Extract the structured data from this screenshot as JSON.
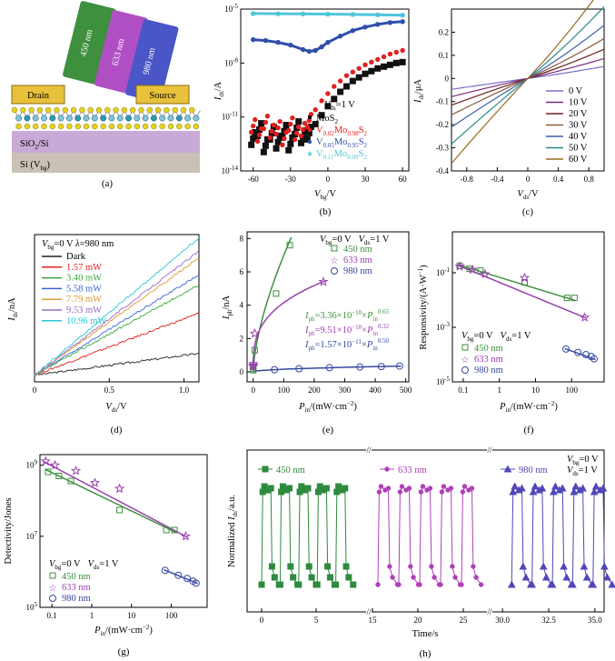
{
  "colors": {
    "green": "#3e8f3e",
    "purple": "#9a3fb0",
    "blue": "#3848a0",
    "red": "#e02020",
    "black": "#111111",
    "cyan": "#4ec6d9",
    "drain_fill": "#e8c23a",
    "sio2": "#c9a9d6",
    "si": "#c9c1b5"
  },
  "panel_labels": [
    "(a)",
    "(b)",
    "(c)",
    "(d)",
    "(e)",
    "(f)",
    "(g)",
    "(h)"
  ],
  "device": {
    "beams": [
      {
        "label": "450 nm",
        "color": "#3e8f3e"
      },
      {
        "label": "633 nm",
        "color": "#b04fc4"
      },
      {
        "label": "980 nm",
        "color": "#4a55c8"
      }
    ],
    "drain": "Drain",
    "source": "Source",
    "sio2": "SiO",
    "sio2_tail": "/Si",
    "si": "Si (V",
    "si_sub": "bg",
    "si_tail": ")"
  },
  "chart_data": [
    {
      "panel": "b",
      "type": "scatter",
      "xlabel": "Vbg/V",
      "ylabel": "Ids/A",
      "xlim": [
        -70,
        65
      ],
      "ylim_log10": [
        -14,
        -5
      ],
      "xticks": [
        -60,
        -30,
        0,
        30,
        60
      ],
      "ytick_labels": [
        {
          "base": "10",
          "exp": "-5"
        },
        {
          "base": "10",
          "exp": "-8"
        },
        {
          "base": "10",
          "exp": "-11"
        },
        {
          "base": "10",
          "exp": "-14"
        }
      ],
      "annotation": "Vds=1 V",
      "legend": [
        "MoS2",
        "V0.02Mo0.98S2",
        "V0.05Mo0.95S2",
        "V0.11Mo0.89S2"
      ],
      "series": [
        {
          "name": "MoS2",
          "color": "#111111",
          "marker": "square",
          "x": [
            -60,
            -55,
            -50,
            -45,
            -40,
            -35,
            -30,
            -25,
            -20,
            -15,
            -10,
            -5,
            0,
            5,
            10,
            15,
            20,
            25,
            30,
            35,
            40,
            45,
            50,
            55,
            60
          ],
          "log10_y": [
            -12.2,
            -11.7,
            -12.6,
            -11.9,
            -12.4,
            -11.8,
            -12.5,
            -11.6,
            -12.1,
            -11.9,
            -11.4,
            -10.9,
            -10.4,
            -10.0,
            -9.6,
            -9.3,
            -9.0,
            -8.8,
            -8.6,
            -8.45,
            -8.3,
            -8.2,
            -8.1,
            -8.0,
            -7.95
          ]
        },
        {
          "name": "V0.02Mo0.98S2",
          "color": "#e02020",
          "marker": "circle",
          "x": [
            -60,
            -55,
            -50,
            -45,
            -40,
            -35,
            -30,
            -25,
            -20,
            -15,
            -10,
            -5,
            0,
            5,
            10,
            15,
            20,
            25,
            30,
            35,
            40,
            45,
            50,
            55,
            60
          ],
          "log10_y": [
            -11.5,
            -12.0,
            -11.3,
            -11.8,
            -11.6,
            -12.2,
            -11.4,
            -11.9,
            -11.7,
            -11.2,
            -10.6,
            -10.1,
            -9.7,
            -9.3,
            -9.0,
            -8.7,
            -8.5,
            -8.3,
            -8.1,
            -7.95,
            -7.8,
            -7.65,
            -7.5,
            -7.4,
            -7.3
          ]
        },
        {
          "name": "V0.05Mo0.95S2",
          "color": "#2f4faa",
          "marker": "circle",
          "x": [
            -60,
            -50,
            -40,
            -30,
            -20,
            -15,
            -10,
            -5,
            0,
            10,
            20,
            30,
            40,
            50,
            60
          ],
          "log10_y": [
            -6.7,
            -6.75,
            -6.85,
            -7.0,
            -7.25,
            -7.35,
            -7.3,
            -7.1,
            -6.85,
            -6.5,
            -6.2,
            -6.0,
            -5.85,
            -5.75,
            -5.7
          ]
        },
        {
          "name": "V0.11Mo0.89S2",
          "color": "#4ec6d9",
          "marker": "circle",
          "x": [
            -60,
            -40,
            -20,
            0,
            20,
            40,
            60
          ],
          "log10_y": [
            -5.25,
            -5.26,
            -5.27,
            -5.28,
            -5.3,
            -5.32,
            -5.34
          ]
        }
      ]
    },
    {
      "panel": "c",
      "type": "line",
      "xlabel": "Vds/V",
      "ylabel": "Ids/μA",
      "xlim": [
        -1.0,
        1.0
      ],
      "ylim": [
        -0.4,
        0.3
      ],
      "xticks": [
        -0.8,
        -0.4,
        0,
        0.4,
        0.8
      ],
      "yticks": [
        -0.4,
        -0.3,
        -0.2,
        -0.1,
        0,
        0.1,
        0.2
      ],
      "legend_unit": "V",
      "series": [
        {
          "name": "0 V",
          "color": "#7b6fc8",
          "slope": 0.045
        },
        {
          "name": "10 V",
          "color": "#7a2a7a",
          "slope": 0.075
        },
        {
          "name": "20 V",
          "color": "#6b2020",
          "slope": 0.11
        },
        {
          "name": "30 V",
          "color": "#8a5a3a",
          "slope": 0.15
        },
        {
          "name": "40 V",
          "color": "#3a62a8",
          "slope": 0.2
        },
        {
          "name": "50 V",
          "color": "#2a8a8a",
          "slope": 0.27
        },
        {
          "name": "60 V",
          "color": "#9a6a20",
          "slope": 0.35
        }
      ],
      "negative_scale": 1.0
    },
    {
      "panel": "d",
      "type": "line",
      "xlabel": "Vds/V",
      "ylabel": "Ids/nA",
      "xlim": [
        0,
        1.1
      ],
      "ylim": [
        -0.02,
        0.42
      ],
      "xticks": [
        0.0,
        0.5,
        1.0
      ],
      "xtick_labels": [
        "0",
        "0.5",
        "1.0"
      ],
      "annotation": "Vbg=0 V  λ=980 nm",
      "series": [
        {
          "name": "Dark",
          "color": "#222222",
          "end": 0.065
        },
        {
          "name": "1.57 mW",
          "color": "#e02020",
          "end": 0.185
        },
        {
          "name": "3.40 mW",
          "color": "#3aaa3a",
          "end": 0.27
        },
        {
          "name": "5.58 mW",
          "color": "#3a62d8",
          "end": 0.3
        },
        {
          "name": "7.79 mW",
          "color": "#e09a30",
          "end": 0.35
        },
        {
          "name": "9.53 mW",
          "color": "#9a6ac8",
          "end": 0.37
        },
        {
          "name": "10.96 mW",
          "color": "#2ac8d8",
          "end": 0.41
        }
      ]
    },
    {
      "panel": "e",
      "type": "scatter",
      "xlabel": "Pin/(mW·cm-2)",
      "ylabel": "Iph/nA",
      "xlim": [
        -20,
        510
      ],
      "ylim": [
        -0.6,
        8.4
      ],
      "xticks": [
        0,
        100,
        200,
        300,
        400,
        500
      ],
      "yticks": [
        0,
        2,
        4,
        6,
        8
      ],
      "annotation": "Vbg=0 V   Vds=1 V",
      "fits": [
        {
          "text": "Iph=3.36×10-10×Pin0.65",
          "color": "#3e8f3e"
        },
        {
          "text": "Iph=9.51×10-10×Pin0.32",
          "color": "#9a3fb0"
        },
        {
          "text": "Iph=1.57×10-11×Pin0.50",
          "color": "#3848a0"
        }
      ],
      "series": [
        {
          "name": "450 nm",
          "color": "#3e8f3e",
          "marker": "square",
          "x": [
            0.1,
            0.2,
            0.4,
            5,
            75,
            120
          ],
          "y": [
            0.1,
            0.18,
            0.3,
            1.3,
            4.7,
            7.6
          ]
        },
        {
          "name": "633 nm",
          "color": "#9a3fb0",
          "marker": "star",
          "x": [
            0.1,
            0.2,
            0.4,
            5,
            230
          ],
          "y": [
            0.32,
            0.38,
            0.48,
            2.3,
            5.4
          ]
        },
        {
          "name": "980 nm",
          "color": "#3848a0",
          "marker": "circle",
          "x": [
            70,
            150,
            250,
            350,
            420,
            480
          ],
          "y": [
            0.13,
            0.19,
            0.25,
            0.29,
            0.32,
            0.35
          ]
        }
      ]
    },
    {
      "panel": "f",
      "type": "scatter",
      "xlabel": "Pin/(mW·cm-2)",
      "ylabel": "Responsivity/(A·W-1)",
      "xscale": "log",
      "yscale": "log",
      "xlim_log10": [
        -1.3,
        2.9
      ],
      "ylim_log10": [
        -5,
        0.5
      ],
      "xticks": [
        0.1,
        1,
        10,
        100
      ],
      "xtick_labels": [
        "0.1",
        "1",
        "10",
        "100"
      ],
      "ytick_labels": [
        {
          "base": "10",
          "exp": "-1"
        },
        {
          "base": "10",
          "exp": "-3"
        },
        {
          "base": "10",
          "exp": "-5"
        }
      ],
      "annotation": "Vbg=0 V   Vds=1 V",
      "series": [
        {
          "name": "450 nm",
          "color": "#3e8f3e",
          "marker": "square",
          "x": [
            0.08,
            0.15,
            0.3,
            5,
            75,
            120
          ],
          "y": [
            0.18,
            0.14,
            0.12,
            0.045,
            0.012,
            0.012
          ]
        },
        {
          "name": "633 nm",
          "color": "#9a3fb0",
          "marker": "star",
          "x": [
            0.08,
            0.18,
            0.4,
            5,
            230
          ],
          "y": [
            0.17,
            0.13,
            0.09,
            0.065,
            0.0023
          ]
        },
        {
          "name": "980 nm",
          "color": "#3848a0",
          "marker": "circle",
          "x": [
            70,
            150,
            250,
            350,
            420
          ],
          "y": [
            0.00016,
            0.00012,
            0.0001,
            8.5e-05,
            7e-05
          ]
        }
      ],
      "fit_lines": [
        {
          "color": "#3e8f3e",
          "x": [
            0.07,
            130
          ],
          "y": [
            0.2,
            0.0095
          ]
        },
        {
          "color": "#9a3fb0",
          "x": [
            0.07,
            250
          ],
          "y": [
            0.19,
            0.0022
          ]
        },
        {
          "color": "#3848a0",
          "x": [
            65,
            460
          ],
          "y": [
            0.000165,
            6.6e-05
          ]
        }
      ]
    },
    {
      "panel": "g",
      "type": "scatter",
      "xlabel": "Pin/(mW·cm-2)",
      "ylabel": "Detectivity/Jones",
      "xscale": "log",
      "yscale": "log",
      "xlim_log10": [
        -1.3,
        2.9
      ],
      "ylim_log10": [
        5,
        9.3
      ],
      "xticks": [
        0.1,
        1,
        10,
        100
      ],
      "xtick_labels": [
        "0.1",
        "1",
        "10",
        "100"
      ],
      "ytick_labels": [
        {
          "base": "10",
          "exp": "9"
        },
        {
          "base": "10",
          "exp": "7"
        },
        {
          "base": "10",
          "exp": "5"
        }
      ],
      "annotation": "Vbg=0 V   Vds=1 V",
      "series": [
        {
          "name": "450 nm",
          "color": "#3e8f3e",
          "marker": "square",
          "x": [
            0.08,
            0.15,
            0.3,
            5,
            75,
            120
          ],
          "y": [
            650000000.0,
            500000000.0,
            360000000.0,
            55000000.0,
            15000000.0,
            15000000.0
          ]
        },
        {
          "name": "633 nm",
          "color": "#9a3fb0",
          "marker": "star",
          "x": [
            0.07,
            0.12,
            0.4,
            1.2,
            5,
            230
          ],
          "y": [
            1300000000.0,
            1000000000.0,
            700000000.0,
            320000000.0,
            220000000.0,
            10000000.0
          ]
        },
        {
          "name": "980 nm",
          "color": "#3848a0",
          "marker": "circle",
          "x": [
            70,
            150,
            250,
            350,
            420
          ],
          "y": [
            1100000.0,
            800000.0,
            650000.0,
            550000.0,
            480000.0
          ]
        }
      ],
      "fit_lines": [
        {
          "color": "#3e8f3e",
          "x": [
            0.07,
            130
          ],
          "y": [
            750000000.0,
            13000000.0
          ]
        },
        {
          "color": "#9a3fb0",
          "x": [
            0.06,
            250
          ],
          "y": [
            1300000000.0,
            9500000.0
          ]
        },
        {
          "color": "#3848a0",
          "x": [
            65,
            460
          ],
          "y": [
            1150000.0,
            470000.0
          ]
        }
      ]
    },
    {
      "panel": "h",
      "type": "line",
      "xlabel": "Time/s",
      "ylabel": "Normalized Ids/a.u.",
      "annotation": "Vbg=0 V  Vds=1 V",
      "segments": [
        {
          "name": "450 nm",
          "color": "#2e8a3e",
          "marker": "square",
          "t0": -1,
          "t1": 9.5,
          "ticks": [
            0,
            5
          ],
          "cycles": [
            0,
            1.7,
            3.4,
            5.1,
            6.8
          ]
        },
        {
          "name": "633 nm",
          "color": "#b040b8",
          "marker": "circle",
          "t0": 15,
          "t1": 27.5,
          "ticks": [
            15,
            20,
            25
          ],
          "cycles": [
            15.6,
            17.9,
            20.2,
            22.5,
            24.8
          ]
        },
        {
          "name": "980 nm",
          "color": "#5048b8",
          "marker": "triangle",
          "t0": 29.5,
          "t1": 35.5,
          "ticks": [
            30.0,
            32.5,
            35.0
          ],
          "tick_labels": [
            "30.0",
            "32.5",
            "35.0"
          ],
          "cycles": [
            30.5,
            31.6,
            32.7,
            33.8,
            34.9
          ]
        }
      ]
    }
  ],
  "texts": {
    "b_ylabel": "I",
    "b_ysub": "ds",
    "b_yunit": "/A",
    "b_xlabel": "V",
    "b_xsub": "bg",
    "b_xunit": "/V",
    "b_ann_v": "V",
    "b_ann_sub": "ds",
    "b_ann_rest": "=1 V",
    "leg_mos2": "MoS",
    "leg_mos2_sub": "2",
    "leg_v002": "V",
    "leg_v002_a": "0.02",
    "leg_v002_b": "Mo",
    "leg_v002_c": "0.98",
    "leg_v002_d": "S",
    "leg_v002_e": "2",
    "leg_v005": "V",
    "leg_v005_a": "0.05",
    "leg_v005_b": "Mo",
    "leg_v005_c": "0.95",
    "leg_v005_d": "S",
    "leg_v005_e": "2",
    "leg_v011": "V",
    "leg_v011_a": "0.11",
    "leg_v011_b": "Mo",
    "leg_v011_c": "0.89",
    "leg_v011_d": "S",
    "leg_v011_e": "2",
    "c_ylabel": "I",
    "c_ysub": "ds",
    "c_yunit": "/μA",
    "c_xlabel": "V",
    "c_xsub": "ds",
    "c_xunit": "/V",
    "d_ylabel": "I",
    "d_ysub": "ds",
    "d_yunit": "/nA",
    "d_xlabel": "V",
    "d_xsub": "ds",
    "d_xunit": "/V",
    "d_ann_v": "V",
    "d_ann_sub": "bg",
    "d_ann_rest": "=0 V ",
    "d_ann_lam": "λ",
    "d_ann_lamrest": "=980 nm",
    "e_ylabel": "I",
    "e_ysub": "ph",
    "e_yunit": "/nA",
    "e_xlabel": "P",
    "e_xsub": "in",
    "e_xunit": "/(mW·cm",
    "e_xexp": "−2",
    "e_xclose": ")",
    "f_ylabel": "Responsivity/(A·W",
    "f_yexp": "−1",
    "f_yclose": ")",
    "g_ylabel": "Detectivity/Jones",
    "h_ylabel": "Normalized ",
    "h_yI": "I",
    "h_ysub": "ds",
    "h_yunit": "/a.u.",
    "h_xlabel": "Time/s",
    "vbg": "V",
    "vbg_sub": "bg",
    "vbg_rest": "=0 V",
    "vds": "V",
    "vds_sub": "ds",
    "vds_rest": "=1 V",
    "fit_I": "I",
    "fit_sub": "ph",
    "fit1_a": "=3.36×10",
    "fit1_e": "−10",
    "fit1_b": "×",
    "fit1_P": "P",
    "fit1_in": "in",
    "fit1_exp": "0.65",
    "fit2_a": "=9.51×10",
    "fit2_e": "−10",
    "fit2_b": "×",
    "fit2_P": "P",
    "fit2_in": "in",
    "fit2_exp": "0.32",
    "fit3_a": "=1.57×10",
    "fit3_e": "−11",
    "fit3_b": "×",
    "fit3_P": "P",
    "fit3_in": "in",
    "fit3_exp": "0.50",
    "leg_450": "450 nm",
    "leg_633": "633 nm",
    "leg_980": "980 nm"
  }
}
